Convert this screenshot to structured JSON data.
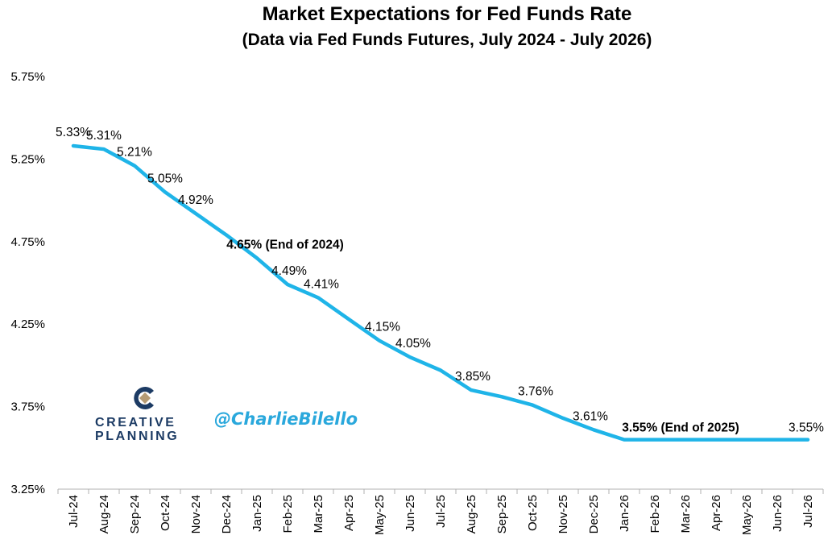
{
  "title": "Market Expectations for Fed Funds Rate",
  "subtitle": "(Data via Fed Funds Futures, July 2024 - July 2026)",
  "watermark": {
    "logo_line1": "CREATIVE",
    "logo_line2": "PLANNING",
    "handle": "@CharlieBilello",
    "logo_icon": "creative-planning-mark-icon"
  },
  "colors": {
    "line": "#1fb4e8",
    "logo_navy": "#1c3b64",
    "logo_tan": "#b59b74",
    "handle": "#2aa8dc"
  },
  "chart_data": {
    "type": "line",
    "title": "Market Expectations for Fed Funds Rate",
    "subtitle": "(Data via Fed Funds Futures, July 2024 - July 2026)",
    "xlabel": "",
    "ylabel": "",
    "ylim": [
      3.25,
      5.75
    ],
    "yticks": [
      "3.25%",
      "3.75%",
      "4.25%",
      "4.75%",
      "5.25%",
      "5.75%"
    ],
    "ytick_values": [
      3.25,
      3.75,
      4.25,
      4.75,
      5.25,
      5.75
    ],
    "grid": false,
    "legend": "none",
    "categories": [
      "Jul-24",
      "Aug-24",
      "Sep-24",
      "Oct-24",
      "Nov-24",
      "Dec-24",
      "Jan-25",
      "Feb-25",
      "Mar-25",
      "Apr-25",
      "May-25",
      "Jun-25",
      "Jul-25",
      "Aug-25",
      "Sep-25",
      "Oct-25",
      "Nov-25",
      "Dec-25",
      "Jan-26",
      "Feb-26",
      "Mar-26",
      "Apr-26",
      "May-26",
      "Jun-26",
      "Jul-26"
    ],
    "series": [
      {
        "values": [
          5.33,
          5.31,
          5.21,
          5.05,
          4.92,
          4.79,
          4.65,
          4.49,
          4.41,
          4.28,
          4.15,
          4.05,
          3.97,
          3.85,
          3.81,
          3.76,
          3.68,
          3.61,
          3.55,
          3.55,
          3.55,
          3.55,
          3.55,
          3.55,
          3.55
        ]
      }
    ],
    "annotations": [
      {
        "index": 0,
        "text": "5.33%",
        "bold": false
      },
      {
        "index": 1,
        "text": "5.31%",
        "bold": false
      },
      {
        "index": 2,
        "text": "5.21%",
        "bold": false
      },
      {
        "index": 3,
        "text": "5.05%",
        "bold": false
      },
      {
        "index": 4,
        "text": "4.92%",
        "bold": false
      },
      {
        "index": 6,
        "text": "4.65% (End of 2024)",
        "bold": true
      },
      {
        "index": 7,
        "text": "4.49%",
        "bold": false
      },
      {
        "index": 8,
        "text": "4.41%",
        "bold": false
      },
      {
        "index": 10,
        "text": "4.15%",
        "bold": false
      },
      {
        "index": 11,
        "text": "4.05%",
        "bold": false
      },
      {
        "index": 13,
        "text": "3.85%",
        "bold": false
      },
      {
        "index": 15,
        "text": "3.76%",
        "bold": false
      },
      {
        "index": 17,
        "text": "3.61%",
        "bold": false
      },
      {
        "index": 18,
        "text": "3.55% (End of 2025)",
        "bold": true
      },
      {
        "index": 24,
        "text": "3.55%",
        "bold": false
      }
    ]
  }
}
